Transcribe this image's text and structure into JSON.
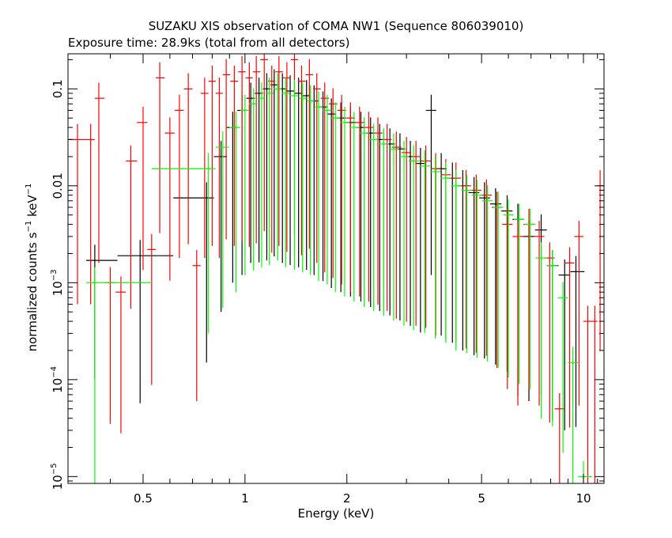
{
  "chart_data": {
    "type": "scatter",
    "title": "SUZAKU XIS observation of COMA NW1 (Sequence 806039010)",
    "subtitle": "Exposure time: 28.9ks (total from all detectors)",
    "xlabel": "Energy (keV)",
    "ylabel": {
      "main": "normalized counts s",
      "sup1": "−1",
      "mid": " keV",
      "sup2": "−1"
    },
    "x_scale": "log",
    "y_scale": "log",
    "xlim": [
      0.3,
      11.5
    ],
    "ylim": [
      8.5e-06,
      0.23
    ],
    "x_ticks": [
      {
        "value": 0.5,
        "label": "0.5"
      },
      {
        "value": 1,
        "label": "1"
      },
      {
        "value": 2,
        "label": "2"
      },
      {
        "value": 5,
        "label": "5"
      },
      {
        "value": 10,
        "label": "10"
      }
    ],
    "y_ticks": [
      {
        "value": 0.1,
        "mant": "0.1",
        "exp": ""
      },
      {
        "value": 0.01,
        "mant": "0.01",
        "exp": ""
      },
      {
        "value": 0.001,
        "mant": "10",
        "exp": "−3"
      },
      {
        "value": 0.0001,
        "mant": "10",
        "exp": "−4"
      },
      {
        "value": 1e-05,
        "mant": "10",
        "exp": "−5"
      }
    ],
    "colors": {
      "black": "#000000",
      "red": "#ff0000",
      "green": "#00ff00"
    },
    "series": [
      {
        "color": "#000000",
        "points": [
          [
            0.36,
            0.0017,
            0.06
          ],
          [
            0.49,
            0.0019,
            0.03
          ],
          [
            0.77,
            0.0075,
            0.02
          ],
          [
            0.85,
            0.02,
            0.025
          ],
          [
            0.92,
            0.04,
            0.025
          ],
          [
            0.98,
            0.06,
            0.02
          ],
          [
            1.04,
            0.08,
            0.02
          ],
          [
            1.1,
            0.09,
            0.018
          ],
          [
            1.16,
            0.1,
            0.017
          ],
          [
            1.22,
            0.11,
            0.017
          ],
          [
            1.29,
            0.1,
            0.016
          ],
          [
            1.36,
            0.095,
            0.016
          ],
          [
            1.44,
            0.09,
            0.016
          ],
          [
            1.52,
            0.085,
            0.016
          ],
          [
            1.6,
            0.075,
            0.016
          ],
          [
            1.7,
            0.065,
            0.016
          ],
          [
            1.8,
            0.055,
            0.016
          ],
          [
            1.92,
            0.05,
            0.016
          ],
          [
            2.05,
            0.045,
            0.016
          ],
          [
            2.2,
            0.04,
            0.016
          ],
          [
            2.35,
            0.035,
            0.016
          ],
          [
            2.5,
            0.03,
            0.017
          ],
          [
            2.68,
            0.027,
            0.017
          ],
          [
            2.87,
            0.024,
            0.017
          ],
          [
            3.08,
            0.02,
            0.018
          ],
          [
            3.3,
            0.017,
            0.018
          ],
          [
            3.55,
            0.06,
            0.02
          ],
          [
            3.8,
            0.015,
            0.019
          ],
          [
            4.1,
            0.012,
            0.02
          ],
          [
            4.4,
            0.01,
            0.02
          ],
          [
            4.75,
            0.0085,
            0.021
          ],
          [
            5.1,
            0.0075,
            0.022
          ],
          [
            5.5,
            0.0065,
            0.022
          ],
          [
            5.95,
            0.0055,
            0.022
          ],
          [
            6.4,
            0.0045,
            0.015
          ],
          [
            6.9,
            0.003,
            0.02
          ],
          [
            7.5,
            0.0035,
            0.02
          ],
          [
            8.1,
            0.0015,
            0.025
          ],
          [
            8.8,
            0.0012,
            0.025
          ],
          [
            9.5,
            0.0013,
            0.025
          ]
        ]
      },
      {
        "color": "#ff0000",
        "points": [
          [
            0.32,
            0.03,
            0.02
          ],
          [
            0.35,
            0.03,
            0.02
          ],
          [
            0.37,
            0.08,
            0.02
          ],
          [
            0.4,
            0.001,
            0.035
          ],
          [
            0.43,
            0.0008,
            0.035
          ],
          [
            0.46,
            0.018,
            0.03
          ],
          [
            0.5,
            0.045,
            0.03
          ],
          [
            0.53,
            0.0022,
            0.04
          ],
          [
            0.56,
            0.13,
            0.025
          ],
          [
            0.6,
            0.035,
            0.03
          ],
          [
            0.64,
            0.06,
            0.03
          ],
          [
            0.68,
            0.1,
            0.025
          ],
          [
            0.72,
            0.0015,
            0.04
          ],
          [
            0.76,
            0.09,
            0.02
          ],
          [
            0.8,
            0.12,
            0.02
          ],
          [
            0.84,
            0.09,
            0.02
          ],
          [
            0.88,
            0.14,
            0.02
          ],
          [
            0.93,
            0.12,
            0.02
          ],
          [
            0.98,
            0.15,
            0.018
          ],
          [
            1.03,
            0.13,
            0.018
          ],
          [
            1.08,
            0.15,
            0.017
          ],
          [
            1.14,
            0.2,
            0.017
          ],
          [
            1.2,
            0.12,
            0.017
          ],
          [
            1.26,
            0.15,
            0.016
          ],
          [
            1.33,
            0.13,
            0.016
          ],
          [
            1.4,
            0.2,
            0.016
          ],
          [
            1.47,
            0.12,
            0.016
          ],
          [
            1.55,
            0.14,
            0.016
          ],
          [
            1.63,
            0.1,
            0.016
          ],
          [
            1.72,
            0.08,
            0.016
          ],
          [
            1.82,
            0.07,
            0.016
          ],
          [
            1.93,
            0.06,
            0.016
          ],
          [
            2.05,
            0.05,
            0.016
          ],
          [
            2.18,
            0.045,
            0.016
          ],
          [
            2.32,
            0.04,
            0.016
          ],
          [
            2.47,
            0.035,
            0.017
          ],
          [
            2.63,
            0.03,
            0.017
          ],
          [
            2.8,
            0.025,
            0.017
          ],
          [
            3.0,
            0.022,
            0.018
          ],
          [
            3.2,
            0.02,
            0.018
          ],
          [
            3.42,
            0.018,
            0.019
          ],
          [
            3.66,
            0.015,
            0.019
          ],
          [
            3.92,
            0.013,
            0.02
          ],
          [
            4.2,
            0.012,
            0.02
          ],
          [
            4.5,
            0.01,
            0.021
          ],
          [
            4.82,
            0.009,
            0.021
          ],
          [
            5.17,
            0.008,
            0.022
          ],
          [
            5.55,
            0.006,
            0.022
          ],
          [
            5.96,
            0.004,
            0.02
          ],
          [
            6.4,
            0.003,
            0.018
          ],
          [
            6.9,
            0.004,
            0.02
          ],
          [
            7.4,
            0.003,
            0.018
          ],
          [
            7.95,
            0.0018,
            0.02
          ],
          [
            8.5,
            5e-05,
            0.02
          ],
          [
            9.1,
            0.0016,
            0.02
          ],
          [
            9.7,
            0.003,
            0.018
          ],
          [
            10.3,
            0.0004,
            0.02
          ],
          [
            10.8,
            0.0004,
            0.02
          ],
          [
            11.2,
            0.01,
            0.02
          ]
        ]
      },
      {
        "color": "#00ff00",
        "points": [
          [
            0.36,
            0.001,
            0.0012
          ],
          [
            0.78,
            0.015,
            0.02
          ],
          [
            0.86,
            0.025,
            0.022
          ],
          [
            0.94,
            0.04,
            0.02
          ],
          [
            1.0,
            0.06,
            0.02
          ],
          [
            1.06,
            0.07,
            0.019
          ],
          [
            1.12,
            0.08,
            0.018
          ],
          [
            1.18,
            0.09,
            0.017
          ],
          [
            1.25,
            0.1,
            0.017
          ],
          [
            1.32,
            0.09,
            0.016
          ],
          [
            1.4,
            0.085,
            0.016
          ],
          [
            1.48,
            0.08,
            0.016
          ],
          [
            1.56,
            0.075,
            0.016
          ],
          [
            1.65,
            0.065,
            0.016
          ],
          [
            1.75,
            0.06,
            0.016
          ],
          [
            1.85,
            0.05,
            0.016
          ],
          [
            1.97,
            0.045,
            0.016
          ],
          [
            2.1,
            0.04,
            0.016
          ],
          [
            2.25,
            0.035,
            0.016
          ],
          [
            2.4,
            0.03,
            0.017
          ],
          [
            2.57,
            0.027,
            0.017
          ],
          [
            2.75,
            0.024,
            0.017
          ],
          [
            2.95,
            0.02,
            0.018
          ],
          [
            3.15,
            0.018,
            0.018
          ],
          [
            3.4,
            0.016,
            0.019
          ],
          [
            3.65,
            0.014,
            0.019
          ],
          [
            3.92,
            0.012,
            0.02
          ],
          [
            4.2,
            0.01,
            0.02
          ],
          [
            4.52,
            0.009,
            0.021
          ],
          [
            4.85,
            0.008,
            0.021
          ],
          [
            5.2,
            0.007,
            0.022
          ],
          [
            5.6,
            0.006,
            0.022
          ],
          [
            6.0,
            0.005,
            0.021
          ],
          [
            6.45,
            0.0045,
            0.02
          ],
          [
            6.95,
            0.004,
            0.02
          ],
          [
            7.5,
            0.0018,
            0.022
          ],
          [
            8.1,
            0.0015,
            0.022
          ],
          [
            8.7,
            0.0007,
            0.025
          ],
          [
            9.3,
            0.00015,
            0.025
          ],
          [
            10.0,
            1e-05,
            0.025
          ]
        ]
      }
    ]
  }
}
